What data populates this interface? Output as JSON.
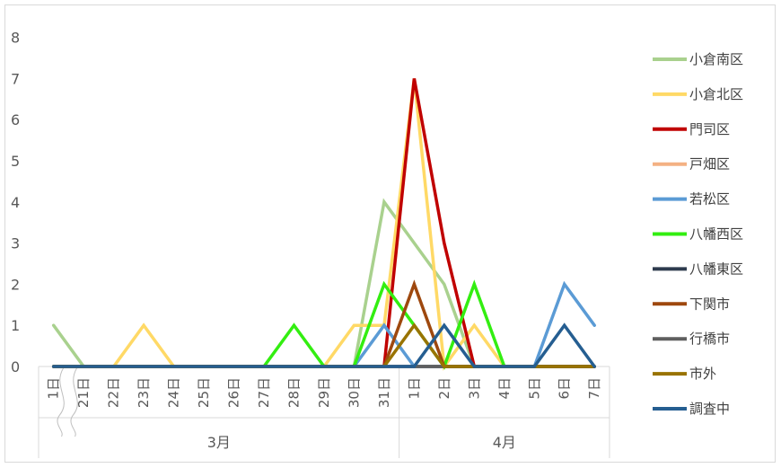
{
  "chart_data": {
    "type": "line",
    "categories": [
      "1日",
      "21日",
      "22日",
      "23日",
      "24日",
      "25日",
      "26日",
      "27日",
      "28日",
      "29日",
      "30日",
      "31日",
      "1日",
      "2日",
      "3日",
      "4日",
      "5日",
      "6日",
      "7日"
    ],
    "groups": [
      {
        "label": "3月",
        "count": 12
      },
      {
        "label": "4月",
        "count": 7
      }
    ],
    "ylim": [
      0,
      8
    ],
    "yticks": [
      0,
      1,
      2,
      3,
      4,
      5,
      6,
      7,
      8
    ],
    "axis_break_after_index": 0,
    "legend_position": "right",
    "series": [
      {
        "name": "小倉南区",
        "color": "#a9d18e",
        "values": [
          1,
          0,
          0,
          0,
          0,
          0,
          0,
          0,
          0,
          0,
          0,
          4,
          3,
          2,
          0,
          0,
          0,
          0,
          0
        ]
      },
      {
        "name": "小倉北区",
        "color": "#ffd966",
        "values": [
          0,
          0,
          0,
          1,
          0,
          0,
          0,
          0,
          0,
          0,
          1,
          1,
          7,
          0,
          1,
          0,
          0,
          0,
          0
        ]
      },
      {
        "name": "門司区",
        "color": "#c00000",
        "values": [
          0,
          0,
          0,
          0,
          0,
          0,
          0,
          0,
          0,
          0,
          0,
          0,
          7,
          3,
          0,
          0,
          0,
          0,
          0
        ]
      },
      {
        "name": "戸畑区",
        "color": "#f4b183",
        "values": [
          0,
          0,
          0,
          0,
          0,
          0,
          0,
          0,
          0,
          0,
          0,
          0,
          0,
          0,
          0,
          0,
          0,
          0,
          0
        ]
      },
      {
        "name": "若松区",
        "color": "#5b9bd5",
        "values": [
          0,
          0,
          0,
          0,
          0,
          0,
          0,
          0,
          0,
          0,
          0,
          1,
          0,
          0,
          0,
          0,
          0,
          2,
          1
        ]
      },
      {
        "name": "八幡西区",
        "color": "#33ee11",
        "values": [
          0,
          0,
          0,
          0,
          0,
          0,
          0,
          0,
          1,
          0,
          0,
          2,
          1,
          0,
          2,
          0,
          0,
          0,
          0
        ]
      },
      {
        "name": "八幡東区",
        "color": "#2e3b4e",
        "values": [
          0,
          0,
          0,
          0,
          0,
          0,
          0,
          0,
          0,
          0,
          0,
          0,
          0,
          0,
          0,
          0,
          0,
          0,
          0
        ]
      },
      {
        "name": "下関市",
        "color": "#9e480e",
        "values": [
          0,
          0,
          0,
          0,
          0,
          0,
          0,
          0,
          0,
          0,
          0,
          0,
          2,
          0,
          0,
          0,
          0,
          0,
          0
        ]
      },
      {
        "name": "行橋市",
        "color": "#5f5f5f",
        "values": [
          0,
          0,
          0,
          0,
          0,
          0,
          0,
          0,
          0,
          0,
          0,
          0,
          0,
          0,
          0,
          0,
          0,
          0,
          0
        ]
      },
      {
        "name": "市外",
        "color": "#997300",
        "values": [
          0,
          0,
          0,
          0,
          0,
          0,
          0,
          0,
          0,
          0,
          0,
          0,
          1,
          0,
          0,
          0,
          0,
          0,
          0
        ]
      },
      {
        "name": "調査中",
        "color": "#255e91",
        "values": [
          0,
          0,
          0,
          0,
          0,
          0,
          0,
          0,
          0,
          0,
          0,
          0,
          0,
          1,
          0,
          0,
          0,
          1,
          0
        ]
      }
    ]
  }
}
